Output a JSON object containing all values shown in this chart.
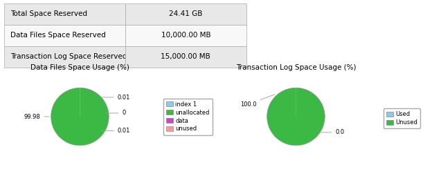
{
  "table": {
    "rows": [
      [
        "Total Space Reserved",
        "24.41 GB"
      ],
      [
        "Data Files Space Reserved",
        "10,000.00 MB"
      ],
      [
        "Transaction Log Space Reserved",
        "15,000.00 MB"
      ]
    ]
  },
  "pie1": {
    "title": "Data Files Space Usage (%)",
    "values": [
      99.98,
      0.01,
      0.0,
      0.01
    ],
    "label_texts": [
      "99.98",
      "0.01",
      "0",
      "0.01"
    ],
    "colors": [
      "#3cb944",
      "#87ceeb",
      "#cc44cc",
      "#ff9999"
    ],
    "legend_labels": [
      "index 1",
      "unallocated",
      "data",
      "unused"
    ],
    "legend_colors": [
      "#87ceeb",
      "#3cb944",
      "#cc44cc",
      "#ff9999"
    ]
  },
  "pie2": {
    "title": "Transaction Log Space Usage (%)",
    "values": [
      100.0,
      0.0
    ],
    "label_texts": [
      "100.0",
      "0.0"
    ],
    "colors": [
      "#3cb944",
      "#87ceeb"
    ],
    "legend_labels": [
      "Used",
      "Unused"
    ],
    "legend_colors": [
      "#87ceeb",
      "#3cb944"
    ]
  },
  "bg_color": "#ffffff",
  "table_row_bg": [
    "#e8e8e8",
    "#f8f8f8",
    "#e8e8e8"
  ],
  "font_size": 7.5,
  "title_font_size": 7.5
}
